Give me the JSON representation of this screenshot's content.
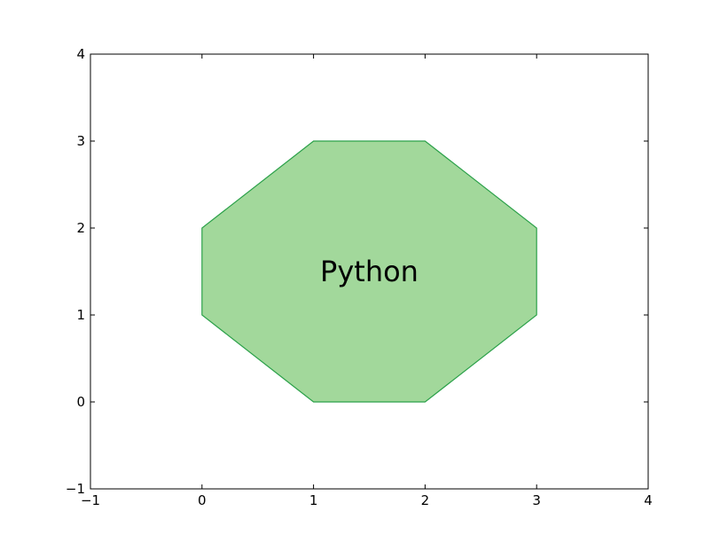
{
  "chart_data": {
    "type": "area",
    "title": "",
    "xlabel": "",
    "ylabel": "",
    "xlim": [
      -1,
      4
    ],
    "ylim": [
      -1,
      4
    ],
    "x_ticks": [
      -1,
      0,
      1,
      2,
      3,
      4
    ],
    "y_ticks": [
      -1,
      0,
      1,
      2,
      3,
      4
    ],
    "x_tick_labels": [
      "−1",
      "0",
      "1",
      "2",
      "3",
      "4"
    ],
    "y_tick_labels": [
      "−1",
      "0",
      "1",
      "2",
      "3",
      "4"
    ],
    "grid": false,
    "legend": "none",
    "series": [
      {
        "shape": "octagon",
        "fill_color": "#a2d89b",
        "edge_color": "#2ca14a",
        "vertices": [
          [
            0,
            1
          ],
          [
            0,
            2
          ],
          [
            1,
            3
          ],
          [
            2,
            3
          ],
          [
            3,
            2
          ],
          [
            3,
            1
          ],
          [
            2,
            0
          ],
          [
            1,
            0
          ]
        ]
      }
    ],
    "annotations": [
      {
        "text": "Python",
        "x": 1.5,
        "y": 1.5
      }
    ]
  }
}
